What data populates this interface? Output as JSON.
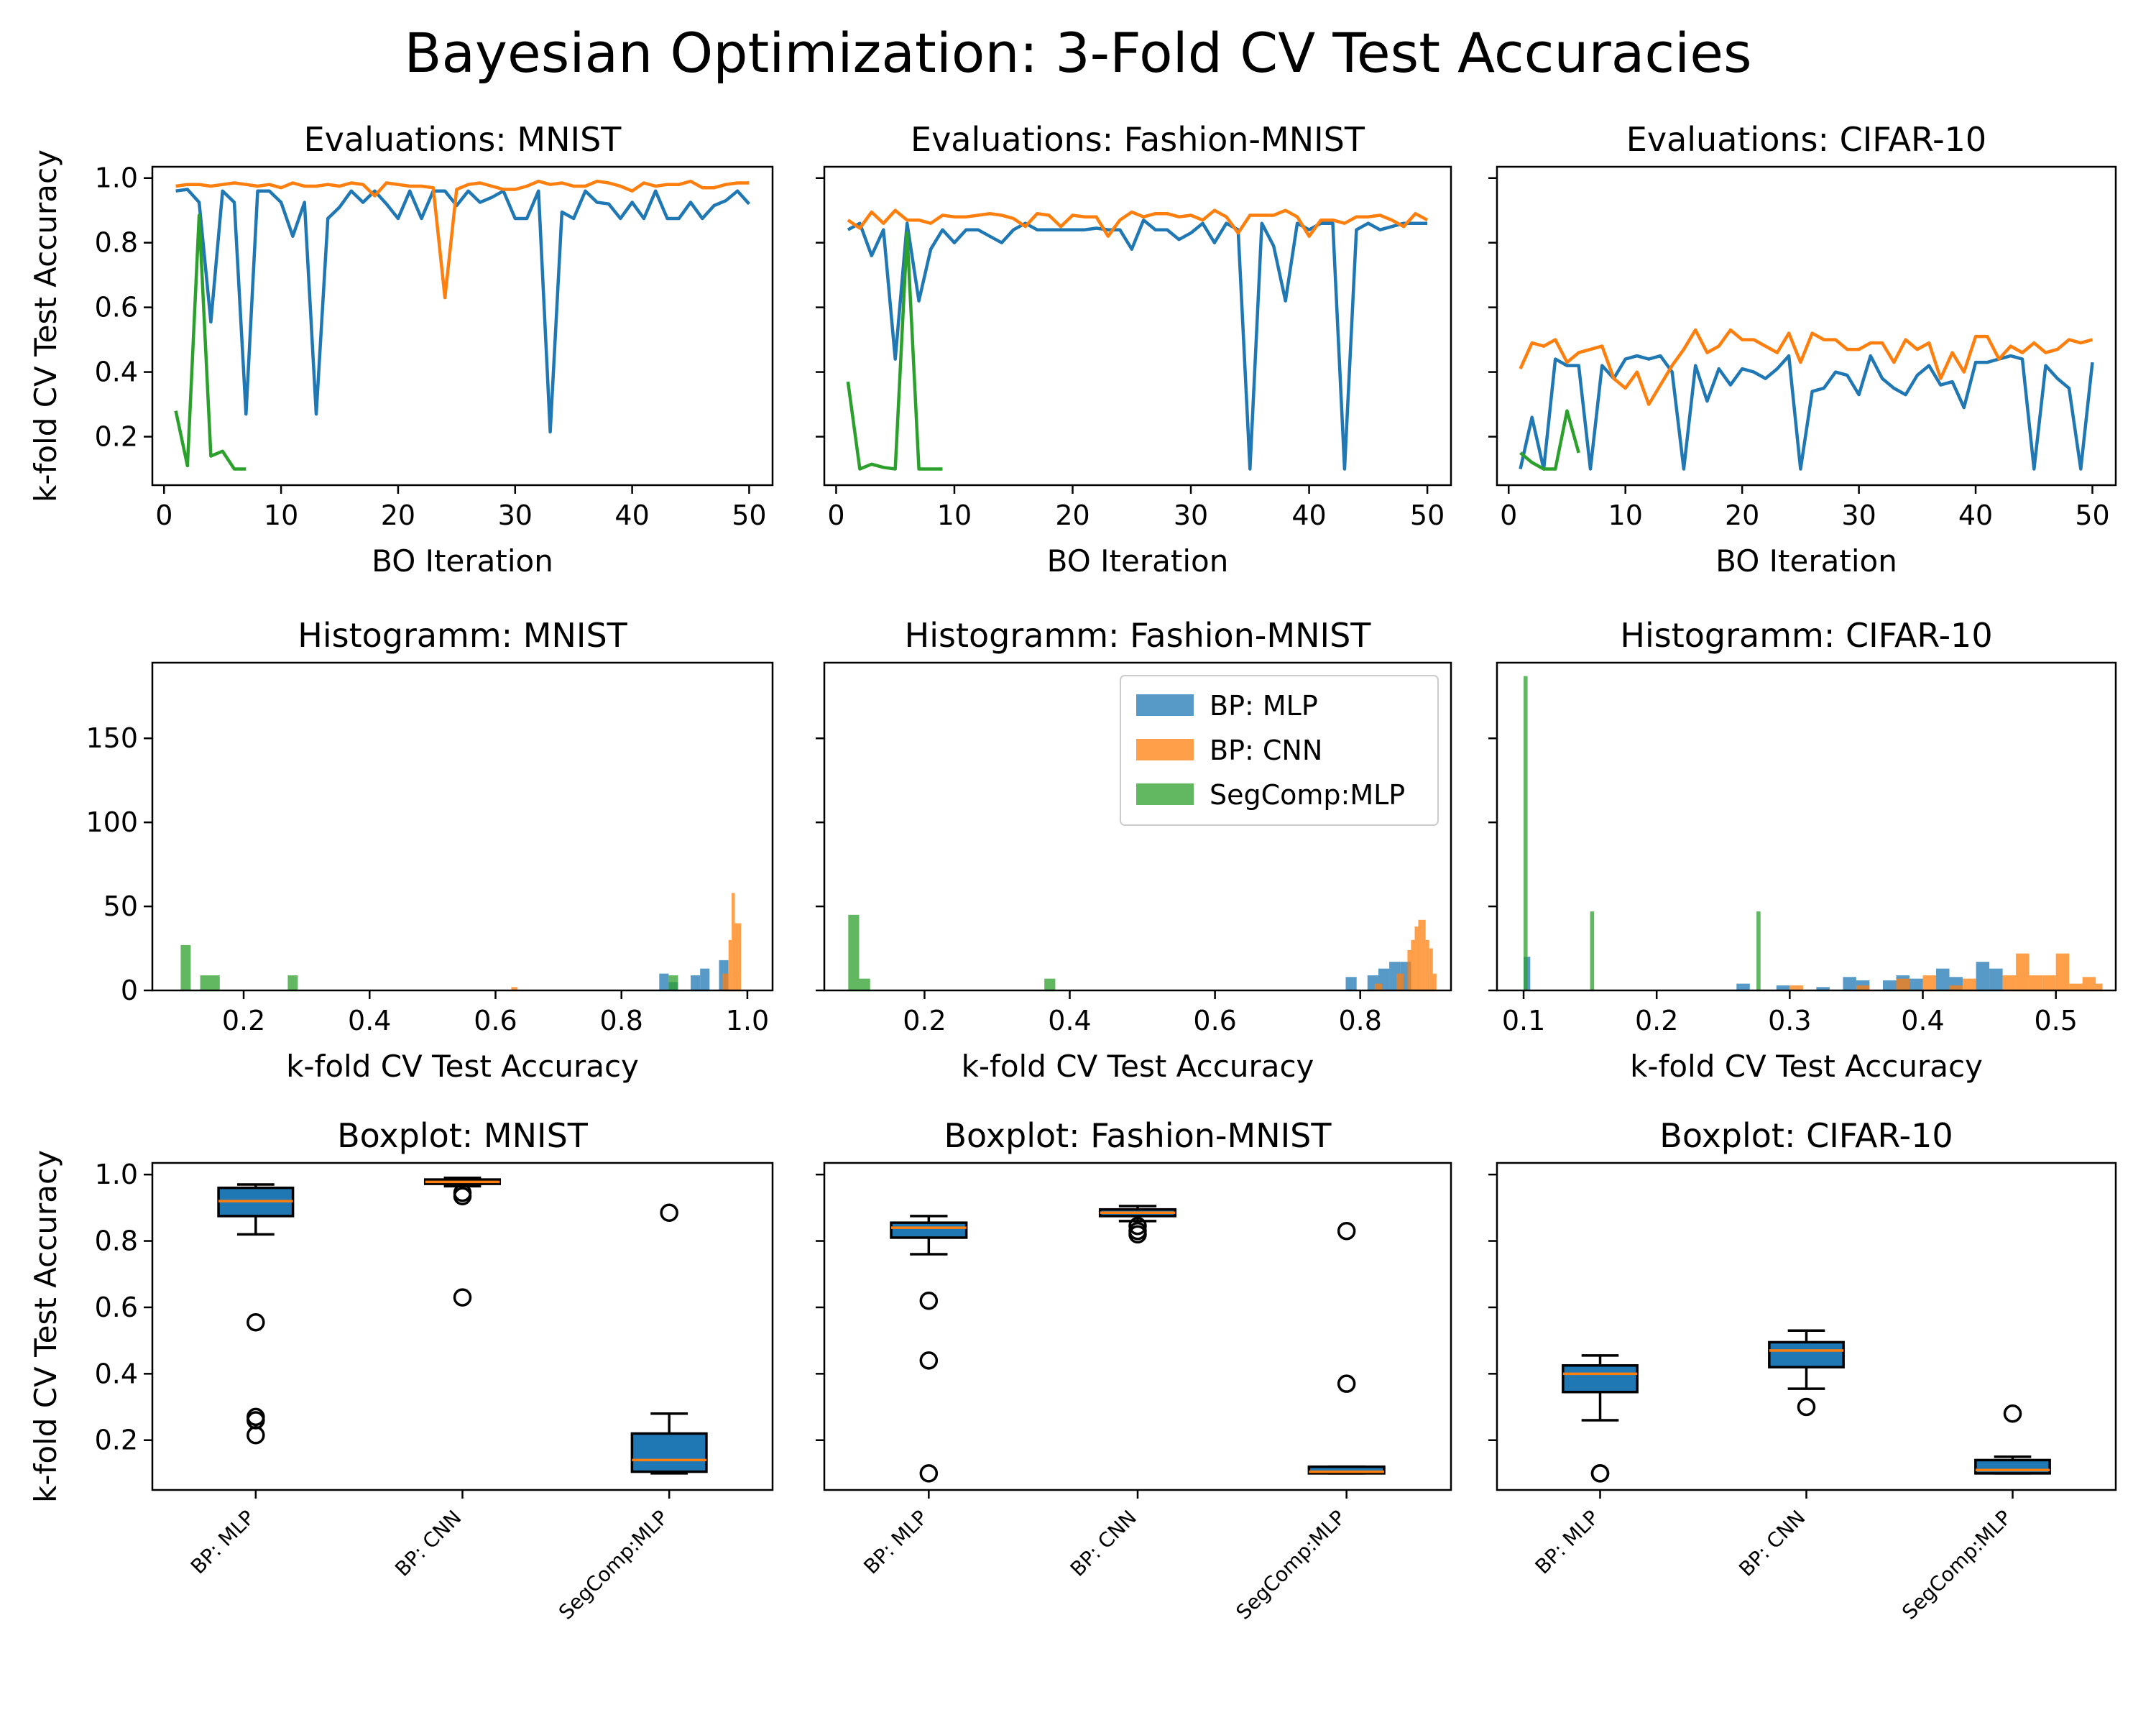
{
  "figure": {
    "title": "Bayesian Optimization: 3-Fold CV Test Accuracies",
    "colors": {
      "mlp": "#1f77b4",
      "cnn": "#ff7f0e",
      "seg": "#2ca02c",
      "box_fill": "#1f77b4",
      "median": "#ff7f0e"
    }
  },
  "chart_data": [
    {
      "type": "line",
      "id": "eval-mnist",
      "title": "Evaluations: MNIST",
      "xlabel": "BO Iteration",
      "ylabel": "k-fold CV Test Accuracy",
      "xlim": [
        -1,
        52
      ],
      "ylim": [
        0.05,
        1.035
      ],
      "xticks": [
        0,
        10,
        20,
        30,
        40,
        50
      ],
      "yticks": [
        0.2,
        0.4,
        0.6,
        0.8,
        1.0
      ],
      "ytick_labels": true,
      "series": [
        {
          "key": "mlp",
          "x_start": 1,
          "values": [
            0.96,
            0.965,
            0.925,
            0.555,
            0.96,
            0.925,
            0.27,
            0.96,
            0.96,
            0.925,
            0.82,
            0.925,
            0.27,
            0.875,
            0.91,
            0.96,
            0.925,
            0.96,
            0.92,
            0.875,
            0.96,
            0.875,
            0.96,
            0.96,
            0.915,
            0.96,
            0.925,
            0.94,
            0.96,
            0.875,
            0.875,
            0.96,
            0.215,
            0.895,
            0.875,
            0.96,
            0.925,
            0.92,
            0.875,
            0.925,
            0.875,
            0.96,
            0.875,
            0.875,
            0.925,
            0.875,
            0.915,
            0.93,
            0.96,
            0.92
          ]
        },
        {
          "key": "cnn",
          "x_start": 1,
          "values": [
            0.975,
            0.98,
            0.98,
            0.975,
            0.98,
            0.985,
            0.98,
            0.975,
            0.98,
            0.97,
            0.985,
            0.975,
            0.975,
            0.98,
            0.975,
            0.985,
            0.98,
            0.945,
            0.985,
            0.98,
            0.975,
            0.975,
            0.97,
            0.63,
            0.965,
            0.98,
            0.985,
            0.975,
            0.965,
            0.965,
            0.975,
            0.99,
            0.98,
            0.985,
            0.975,
            0.975,
            0.99,
            0.985,
            0.975,
            0.96,
            0.985,
            0.975,
            0.98,
            0.98,
            0.99,
            0.97,
            0.97,
            0.98,
            0.985,
            0.985
          ]
        },
        {
          "key": "seg",
          "x_start": 1,
          "values": [
            0.28,
            0.11,
            0.885,
            0.14,
            0.155,
            0.1,
            0.1
          ]
        }
      ]
    },
    {
      "type": "line",
      "id": "eval-fashion",
      "title": "Evaluations: Fashion-MNIST",
      "xlabel": "BO Iteration",
      "xlim": [
        -1,
        52
      ],
      "ylim": [
        0.05,
        1.035
      ],
      "xticks": [
        0,
        10,
        20,
        30,
        40,
        50
      ],
      "yticks": [
        0.2,
        0.4,
        0.6,
        0.8,
        1.0
      ],
      "ytick_labels": false,
      "series": [
        {
          "key": "mlp",
          "x_start": 1,
          "values": [
            0.84,
            0.86,
            0.76,
            0.84,
            0.44,
            0.86,
            0.62,
            0.78,
            0.84,
            0.8,
            0.84,
            0.84,
            0.82,
            0.8,
            0.84,
            0.86,
            0.84,
            0.84,
            0.84,
            0.84,
            0.84,
            0.845,
            0.84,
            0.84,
            0.78,
            0.87,
            0.84,
            0.84,
            0.81,
            0.83,
            0.86,
            0.8,
            0.86,
            0.84,
            0.1,
            0.86,
            0.79,
            0.62,
            0.86,
            0.84,
            0.86,
            0.86,
            0.1,
            0.84,
            0.86,
            0.84,
            0.85,
            0.86,
            0.86,
            0.86
          ]
        },
        {
          "key": "cnn",
          "x_start": 1,
          "values": [
            0.87,
            0.845,
            0.895,
            0.86,
            0.9,
            0.87,
            0.87,
            0.86,
            0.885,
            0.88,
            0.88,
            0.885,
            0.89,
            0.885,
            0.875,
            0.85,
            0.89,
            0.885,
            0.85,
            0.885,
            0.88,
            0.88,
            0.82,
            0.87,
            0.895,
            0.88,
            0.89,
            0.89,
            0.88,
            0.885,
            0.87,
            0.9,
            0.88,
            0.83,
            0.885,
            0.885,
            0.885,
            0.9,
            0.88,
            0.82,
            0.87,
            0.87,
            0.86,
            0.88,
            0.88,
            0.885,
            0.87,
            0.85,
            0.89,
            0.87
          ]
        },
        {
          "key": "seg",
          "x_start": 1,
          "values": [
            0.37,
            0.1,
            0.115,
            0.105,
            0.1,
            0.83,
            0.1,
            0.1,
            0.1
          ]
        }
      ]
    },
    {
      "type": "line",
      "id": "eval-cifar",
      "title": "Evaluations: CIFAR-10",
      "xlabel": "BO Iteration",
      "xlim": [
        -1,
        52
      ],
      "ylim": [
        0.05,
        1.035
      ],
      "xticks": [
        0,
        10,
        20,
        30,
        40,
        50
      ],
      "yticks": [
        0.2,
        0.4,
        0.6,
        0.8,
        1.0
      ],
      "ytick_labels": false,
      "series": [
        {
          "key": "mlp",
          "x_start": 1,
          "values": [
            0.1,
            0.26,
            0.1,
            0.44,
            0.42,
            0.42,
            0.1,
            0.42,
            0.38,
            0.44,
            0.45,
            0.44,
            0.45,
            0.4,
            0.1,
            0.42,
            0.31,
            0.41,
            0.36,
            0.41,
            0.4,
            0.38,
            0.41,
            0.45,
            0.1,
            0.34,
            0.35,
            0.4,
            0.39,
            0.33,
            0.45,
            0.38,
            0.35,
            0.33,
            0.39,
            0.42,
            0.36,
            0.37,
            0.29,
            0.43,
            0.43,
            0.44,
            0.45,
            0.44,
            0.1,
            0.42,
            0.38,
            0.35,
            0.1,
            0.43
          ]
        },
        {
          "key": "cnn",
          "x_start": 1,
          "values": [
            0.41,
            0.49,
            0.48,
            0.5,
            0.43,
            0.46,
            0.47,
            0.48,
            0.38,
            0.35,
            0.4,
            0.3,
            0.36,
            0.42,
            0.47,
            0.53,
            0.46,
            0.48,
            0.53,
            0.5,
            0.5,
            0.48,
            0.46,
            0.52,
            0.43,
            0.52,
            0.5,
            0.5,
            0.47,
            0.47,
            0.49,
            0.49,
            0.43,
            0.5,
            0.47,
            0.49,
            0.38,
            0.46,
            0.4,
            0.51,
            0.51,
            0.44,
            0.48,
            0.46,
            0.49,
            0.46,
            0.47,
            0.5,
            0.49,
            0.5
          ]
        },
        {
          "key": "seg",
          "x_start": 1,
          "values": [
            0.15,
            0.12,
            0.1,
            0.1,
            0.28,
            0.15
          ]
        }
      ]
    },
    {
      "type": "bar",
      "id": "hist-mnist",
      "title": "Histogramm: MNIST",
      "xlabel": "k-fold CV Test Accuracy",
      "xlim": [
        0.055,
        1.04
      ],
      "ylim": [
        0,
        195
      ],
      "xticks": [
        0.2,
        0.4,
        0.6,
        0.8,
        1.0
      ],
      "yticks": [
        0,
        50,
        100,
        150
      ],
      "ytick_labels": true,
      "series": [
        {
          "key": "mlp",
          "opacity": 0.75,
          "bins": [
            [
              0.86,
              0.875,
              10
            ],
            [
              0.875,
              0.89,
              5
            ],
            [
              0.91,
              0.925,
              9
            ],
            [
              0.925,
              0.94,
              13
            ],
            [
              0.955,
              0.97,
              18
            ]
          ]
        },
        {
          "key": "cnn",
          "opacity": 0.75,
          "bins": [
            [
              0.625,
              0.635,
              2
            ],
            [
              0.96,
              0.97,
              10
            ],
            [
              0.97,
              0.975,
              30
            ],
            [
              0.975,
              0.98,
              58
            ],
            [
              0.98,
              0.99,
              40
            ]
          ]
        },
        {
          "key": "seg",
          "opacity": 0.75,
          "bins": [
            [
              0.1,
              0.116,
              27
            ],
            [
              0.131,
              0.162,
              9
            ],
            [
              0.27,
              0.286,
              9
            ],
            [
              0.875,
              0.89,
              9
            ]
          ]
        }
      ]
    },
    {
      "type": "bar",
      "id": "hist-fashion",
      "title": "Histogramm: Fashion-MNIST",
      "xlabel": "k-fold CV Test Accuracy",
      "xlim": [
        0.062,
        0.925
      ],
      "ylim": [
        0,
        195
      ],
      "xticks": [
        0.2,
        0.4,
        0.6,
        0.8
      ],
      "yticks": [
        0,
        50,
        100,
        150
      ],
      "ytick_labels": false,
      "series": [
        {
          "key": "mlp",
          "opacity": 0.75,
          "bins": [
            [
              0.78,
              0.795,
              8
            ],
            [
              0.81,
              0.825,
              9
            ],
            [
              0.825,
              0.84,
              13
            ],
            [
              0.84,
              0.855,
              17
            ],
            [
              0.855,
              0.87,
              17
            ]
          ]
        },
        {
          "key": "cnn",
          "opacity": 0.75,
          "bins": [
            [
              0.82,
              0.83,
              4
            ],
            [
              0.85,
              0.86,
              10
            ],
            [
              0.865,
              0.87,
              24
            ],
            [
              0.87,
              0.875,
              30
            ],
            [
              0.875,
              0.88,
              38
            ],
            [
              0.88,
              0.885,
              42
            ],
            [
              0.885,
              0.89,
              42
            ],
            [
              0.89,
              0.895,
              30
            ],
            [
              0.895,
              0.9,
              25
            ],
            [
              0.9,
              0.905,
              10
            ]
          ]
        },
        {
          "key": "seg",
          "opacity": 0.75,
          "bins": [
            [
              0.095,
              0.11,
              45
            ],
            [
              0.11,
              0.125,
              7
            ],
            [
              0.365,
              0.38,
              7
            ]
          ]
        }
      ]
    },
    {
      "type": "bar",
      "id": "hist-cifar",
      "title": "Histogramm: CIFAR-10",
      "xlabel": "k-fold CV Test Accuracy",
      "xlim": [
        0.08,
        0.545
      ],
      "ylim": [
        0,
        195
      ],
      "xticks": [
        0.1,
        0.2,
        0.3,
        0.4,
        0.5
      ],
      "xtick_labels": [
        "0.1",
        "0.2",
        "0.3",
        "0.4",
        "0.5"
      ],
      "yticks": [
        0,
        50,
        100,
        150
      ],
      "ytick_labels": false,
      "series": [
        {
          "key": "mlp",
          "opacity": 0.75,
          "bins": [
            [
              0.1,
              0.105,
              20
            ],
            [
              0.26,
              0.27,
              4
            ],
            [
              0.29,
              0.3,
              3
            ],
            [
              0.32,
              0.33,
              2
            ],
            [
              0.34,
              0.35,
              8
            ],
            [
              0.35,
              0.36,
              6
            ],
            [
              0.37,
              0.38,
              6
            ],
            [
              0.38,
              0.39,
              9
            ],
            [
              0.39,
              0.4,
              7
            ],
            [
              0.41,
              0.42,
              13
            ],
            [
              0.42,
              0.43,
              8
            ],
            [
              0.44,
              0.45,
              17
            ],
            [
              0.45,
              0.46,
              13
            ]
          ]
        },
        {
          "key": "cnn",
          "opacity": 0.75,
          "bins": [
            [
              0.3,
              0.31,
              3
            ],
            [
              0.35,
              0.36,
              3
            ],
            [
              0.38,
              0.39,
              7
            ],
            [
              0.4,
              0.41,
              9
            ],
            [
              0.42,
              0.43,
              3
            ],
            [
              0.43,
              0.44,
              7
            ],
            [
              0.46,
              0.47,
              9
            ],
            [
              0.47,
              0.48,
              22
            ],
            [
              0.48,
              0.49,
              9
            ],
            [
              0.49,
              0.5,
              9
            ],
            [
              0.5,
              0.51,
              22
            ],
            [
              0.51,
              0.52,
              4
            ],
            [
              0.52,
              0.53,
              8
            ],
            [
              0.53,
              0.535,
              4
            ]
          ]
        },
        {
          "key": "seg",
          "opacity": 0.75,
          "bins": [
            [
              0.1,
              0.103,
              187
            ],
            [
              0.15,
              0.153,
              47
            ],
            [
              0.275,
              0.278,
              47
            ]
          ]
        }
      ]
    },
    {
      "type": "box",
      "id": "box-mnist",
      "title": "Boxplot: MNIST",
      "ylabel": "k-fold CV Test Accuracy",
      "ylim": [
        0.05,
        1.035
      ],
      "yticks": [
        0.2,
        0.4,
        0.6,
        0.8,
        1.0
      ],
      "ytick_labels": true,
      "categories": [
        "BP: MLP",
        "BP: CNN",
        "SegComp:MLP"
      ],
      "boxes": [
        {
          "q1": 0.875,
          "median": 0.92,
          "q3": 0.96,
          "whislo": 0.82,
          "whishi": 0.97,
          "fliers": [
            0.555,
            0.27,
            0.26,
            0.215
          ]
        },
        {
          "q1": 0.972,
          "median": 0.978,
          "q3": 0.985,
          "whislo": 0.965,
          "whishi": 0.99,
          "fliers": [
            0.945,
            0.935,
            0.63
          ]
        },
        {
          "q1": 0.105,
          "median": 0.14,
          "q3": 0.22,
          "whislo": 0.1,
          "whishi": 0.28,
          "fliers": [
            0.885
          ]
        }
      ]
    },
    {
      "type": "box",
      "id": "box-fashion",
      "title": "Boxplot: Fashion-MNIST",
      "ylim": [
        0.05,
        1.035
      ],
      "yticks": [
        0.2,
        0.4,
        0.6,
        0.8,
        1.0
      ],
      "ytick_labels": false,
      "categories": [
        "BP: MLP",
        "BP: CNN",
        "SegComp:MLP"
      ],
      "boxes": [
        {
          "q1": 0.81,
          "median": 0.84,
          "q3": 0.855,
          "whislo": 0.76,
          "whishi": 0.875,
          "fliers": [
            0.62,
            0.44,
            0.1
          ]
        },
        {
          "q1": 0.875,
          "median": 0.885,
          "q3": 0.895,
          "whislo": 0.86,
          "whishi": 0.905,
          "fliers": [
            0.845,
            0.83,
            0.82
          ]
        },
        {
          "q1": 0.1,
          "median": 0.105,
          "q3": 0.12,
          "whislo": 0.1,
          "whishi": 0.12,
          "fliers": [
            0.83,
            0.37
          ]
        }
      ]
    },
    {
      "type": "box",
      "id": "box-cifar",
      "title": "Boxplot: CIFAR-10",
      "ylim": [
        0.05,
        1.035
      ],
      "yticks": [
        0.2,
        0.4,
        0.6,
        0.8,
        1.0
      ],
      "ytick_labels": false,
      "categories": [
        "BP: MLP",
        "BP: CNN",
        "SegComp:MLP"
      ],
      "boxes": [
        {
          "q1": 0.345,
          "median": 0.4,
          "q3": 0.425,
          "whislo": 0.26,
          "whishi": 0.455,
          "fliers": [
            0.1,
            0.1
          ]
        },
        {
          "q1": 0.42,
          "median": 0.47,
          "q3": 0.495,
          "whislo": 0.355,
          "whishi": 0.53,
          "fliers": [
            0.3
          ]
        },
        {
          "q1": 0.1,
          "median": 0.11,
          "q3": 0.14,
          "whislo": 0.1,
          "whishi": 0.15,
          "fliers": [
            0.28
          ]
        }
      ]
    }
  ],
  "legend": {
    "panel": "hist-fashion",
    "placement": "upper right",
    "entries": [
      {
        "key": "mlp",
        "label": "BP: MLP"
      },
      {
        "key": "cnn",
        "label": "BP: CNN"
      },
      {
        "key": "seg",
        "label": "SegComp:MLP"
      }
    ]
  }
}
